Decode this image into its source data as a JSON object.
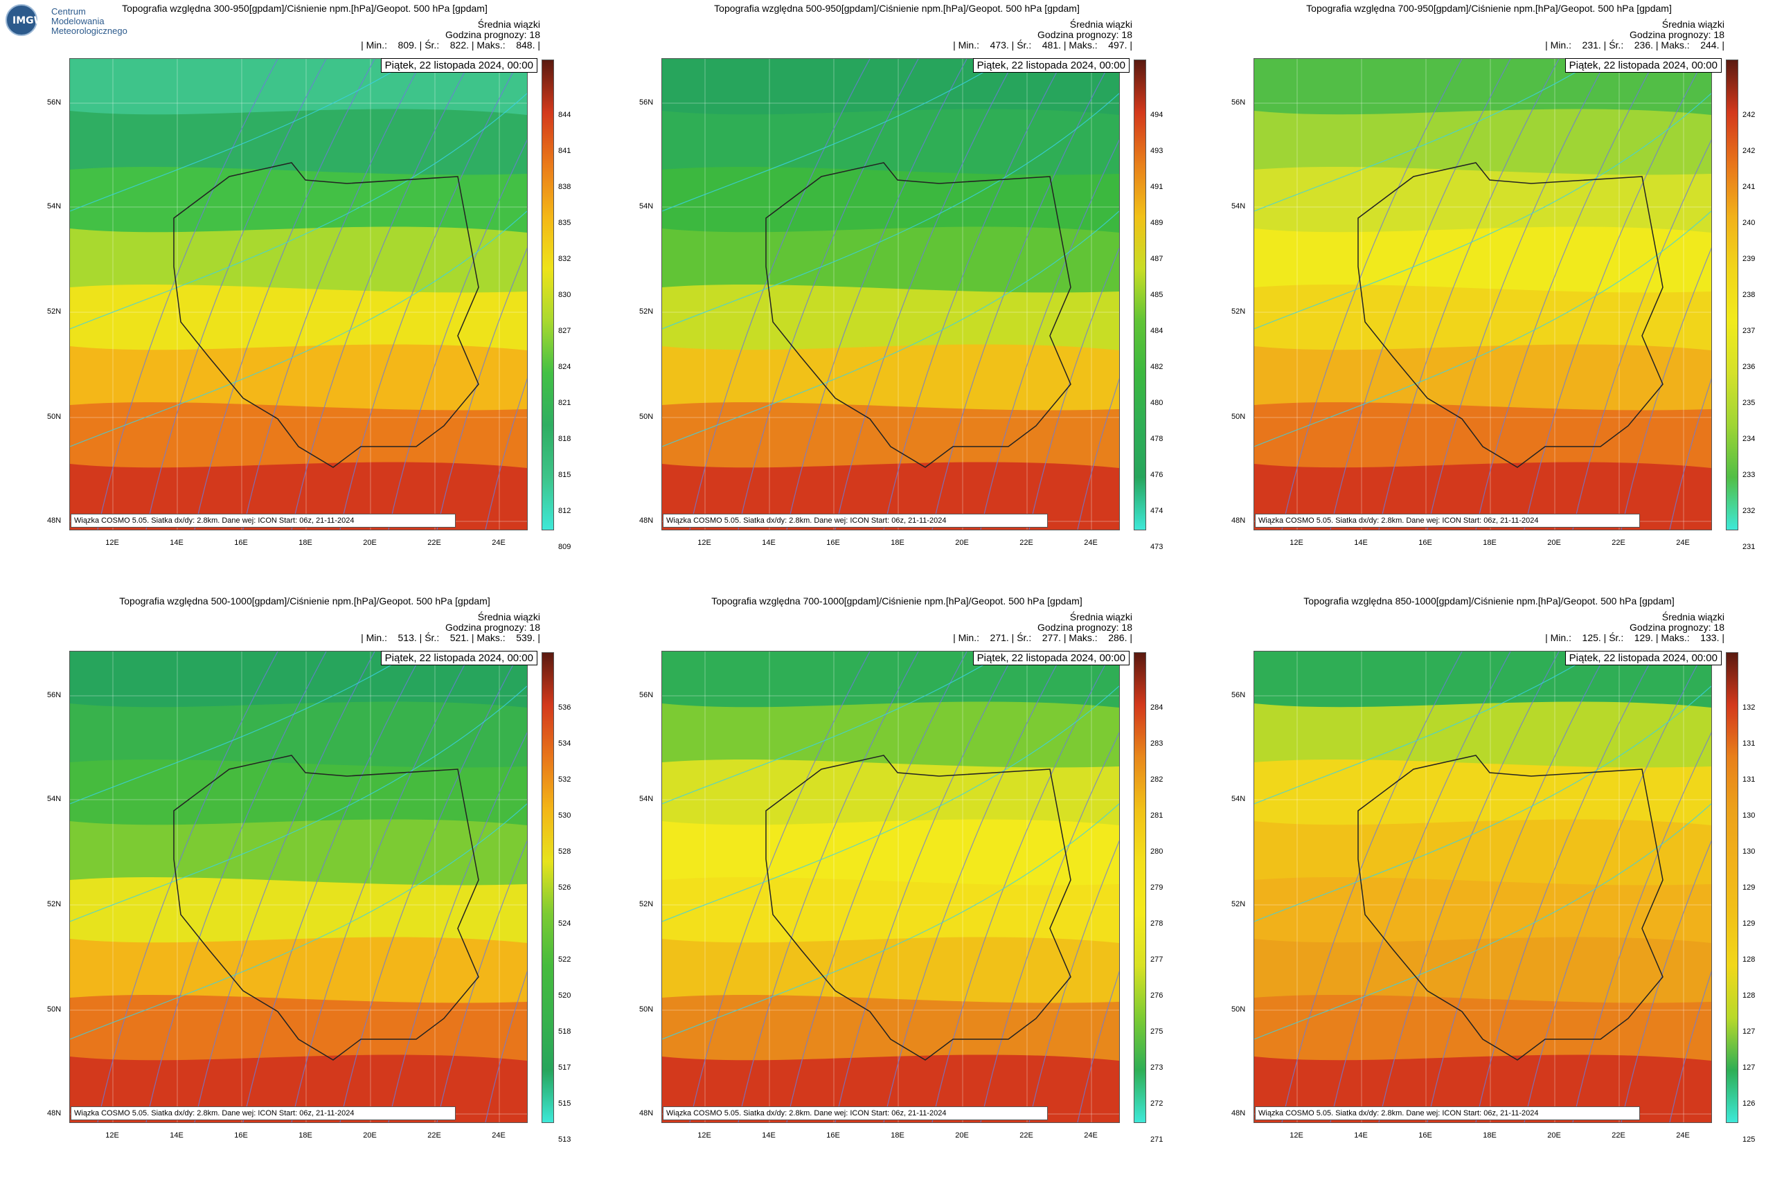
{
  "logo": {
    "abbr": "IMGW",
    "line1": "Centrum",
    "line2": "Modelowania",
    "line3": "Meteorologicznego"
  },
  "panels": [
    {
      "title": "Topografia względna 300-950[gpdam]/Ciśnienie npm.[hPa]/Geopot. 500 hPa [gpdam]",
      "stat_label": "Średnia wiązki",
      "forecast_hour": "Godzina prognozy: 18",
      "stats": "| Min.:    809. | Śr.:    822. | Maks.:    848. |",
      "date": "Piątek, 22 listopada 2024, 00:00",
      "footer": "Wiązka COSMO 5.05. Siatka dx/dy: 2.8km. Dane wej: ICON Start: 06z, 21-11-2024",
      "colorbar": [
        "844",
        "841",
        "838",
        "835",
        "832",
        "830",
        "827",
        "824",
        "821",
        "818",
        "815",
        "812",
        "809"
      ],
      "palette": [
        "#3ec48a",
        "#2fae62",
        "#43c045",
        "#a9d92f",
        "#eee31a",
        "#f4b718",
        "#ea7a1a",
        "#d3391c"
      ]
    },
    {
      "title": "Topografia względna 500-950[gpdam]/Ciśnienie npm.[hPa]/Geopot. 500 hPa [gpdam]",
      "stat_label": "Średnia wiązki",
      "forecast_hour": "Godzina prognozy: 18",
      "stats": "| Min.:    473. | Śr.:    481. | Maks.:    497. |",
      "date": "Piątek, 22 listopada 2024, 00:00",
      "footer": "Wiązka COSMO 5.05. Siatka dx/dy: 2.8km. Dane wej: ICON Start: 06z, 21-11-2024",
      "colorbar": [
        "494",
        "493",
        "491",
        "489",
        "487",
        "485",
        "484",
        "482",
        "480",
        "478",
        "476",
        "474",
        "473"
      ],
      "palette": [
        "#27a55c",
        "#2fae55",
        "#3cb83f",
        "#61c436",
        "#c8dd25",
        "#f1c118",
        "#e8801b",
        "#d3391c"
      ]
    },
    {
      "title": "Topografia względna 700-950[gpdam]/Ciśnienie npm.[hPa]/Geopot. 500 hPa [gpdam]",
      "stat_label": "Średnia wiązki",
      "forecast_hour": "Godzina prognozy: 18",
      "stats": "| Min.:    231. | Śr.:    236. | Maks.:    244. |",
      "date": "Piątek, 22 listopada 2024, 00:00",
      "footer": "Wiązka COSMO 5.05. Siatka dx/dy: 2.8km. Dane wej: ICON Start: 06z, 21-11-2024",
      "colorbar": [
        "242",
        "242",
        "241",
        "240",
        "239",
        "238",
        "237",
        "236",
        "235",
        "234",
        "233",
        "232",
        "231"
      ],
      "palette": [
        "#52be46",
        "#9fd535",
        "#d4e12a",
        "#f1ea1c",
        "#f1d51a",
        "#f1b11a",
        "#e8761b",
        "#d3391c"
      ]
    },
    {
      "title": "Topografia względna 500-1000[gpdam]/Ciśnienie npm.[hPa]/Geopot. 500 hPa [gpdam]",
      "stat_label": "Średnia wiązki",
      "forecast_hour": "Godzina prognozy: 18",
      "stats": "| Min.:    513. | Śr.:    521. | Maks.:    539. |",
      "date": "Piątek, 22 listopada 2024, 00:00",
      "footer": "Wiązka COSMO 5.05. Siatka dx/dy: 2.8km. Dane wej: ICON Start: 06z, 21-11-2024",
      "colorbar": [
        "536",
        "534",
        "532",
        "530",
        "528",
        "526",
        "524",
        "522",
        "520",
        "518",
        "517",
        "515",
        "513"
      ],
      "palette": [
        "#27a55c",
        "#38b24c",
        "#46bb3e",
        "#7ccb33",
        "#e7e31d",
        "#f3b618",
        "#e8761b",
        "#d3391c"
      ]
    },
    {
      "title": "Topografia względna 700-1000[gpdam]/Ciśnienie npm.[hPa]/Geopot. 500 hPa [gpdam]",
      "stat_label": "Średnia wiązki",
      "forecast_hour": "Godzina prognozy: 18",
      "stats": "| Min.:    271. | Śr.:    277. | Maks.:    286. |",
      "date": "Piątek, 22 listopada 2024, 00:00",
      "footer": "Wiązka COSMO 5.05. Siatka dx/dy: 2.8km. Dane wej: ICON Start: 06z, 21-11-2024",
      "colorbar": [
        "284",
        "283",
        "282",
        "281",
        "280",
        "279",
        "278",
        "277",
        "276",
        "275",
        "273",
        "272",
        "271"
      ],
      "palette": [
        "#2fae55",
        "#7ccb33",
        "#d8e124",
        "#f3ea1c",
        "#f3e01b",
        "#f1c118",
        "#e8881b",
        "#d3391c"
      ]
    },
    {
      "title": "Topografia względna 850-1000[gpdam]/Ciśnienie npm.[hPa]/Geopot. 500 hPa [gpdam]",
      "stat_label": "Średnia wiązki",
      "forecast_hour": "Godzina prognozy: 18",
      "stats": "| Min.:    125. | Śr.:    129. | Maks.:    133. |",
      "date": "Piątek, 22 listopada 2024, 00:00",
      "footer": "Wiązka COSMO 5.05. Siatka dx/dy: 2.8km. Dane wej: ICON Start: 06z, 21-11-2024",
      "colorbar": [
        "132",
        "131",
        "131",
        "130",
        "130",
        "129",
        "129",
        "128",
        "128",
        "127",
        "127",
        "126",
        "125"
      ],
      "palette": [
        "#2fae55",
        "#b8d92a",
        "#f1d71a",
        "#f1c118",
        "#f1b11a",
        "#eca11a",
        "#e8801b",
        "#d3391c"
      ]
    }
  ],
  "axes": {
    "lat_labels": [
      "56N",
      "54N",
      "52N",
      "50N",
      "48N"
    ],
    "lon_labels": [
      "12E",
      "14E",
      "16E",
      "18E",
      "20E",
      "22E",
      "24E"
    ]
  },
  "colors": {
    "isobar": "#6b7bd8",
    "geopot": "#3ad2e6",
    "border": "#222222",
    "colorbar_top": "#5a1a10",
    "colorbar_bottom": "#3ee8d8"
  }
}
